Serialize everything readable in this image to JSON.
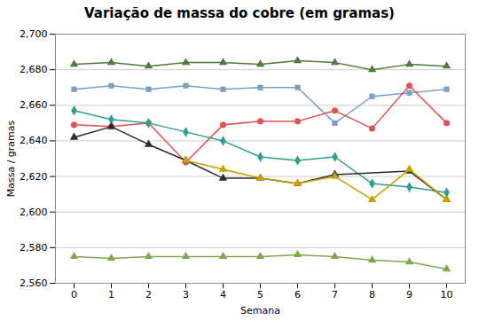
{
  "chart_data": {
    "type": "line",
    "title": "Variação de massa do cobre (em gramas)",
    "xlabel": "Semana",
    "ylabel": "Massa / gramas",
    "x": [
      0,
      1,
      2,
      3,
      4,
      5,
      6,
      7,
      8,
      9,
      10
    ],
    "series": [
      {
        "color": "#4E7A3C",
        "marker": "triangle",
        "values": [
          2683,
          2684,
          2682,
          2684,
          2684,
          2683,
          2685,
          2684,
          2680,
          2683,
          2682
        ]
      },
      {
        "color": "#7B9EC5",
        "marker": "square",
        "values": [
          2669,
          2671,
          2669,
          2671,
          2669,
          2670,
          2670,
          2650,
          2665,
          2667,
          2669
        ]
      },
      {
        "color": "#E05050",
        "marker": "circle",
        "values": [
          2649,
          2648,
          2650,
          2628,
          2649,
          2651,
          2651,
          2657,
          2647,
          2671,
          2650
        ]
      },
      {
        "color": "#2E9E8F",
        "marker": "diamond",
        "values": [
          2657,
          2652,
          2650,
          2645,
          2640,
          2631,
          2629,
          2631,
          2616,
          2614,
          2611
        ]
      },
      {
        "color": "#2A2A2A",
        "marker": "triangle",
        "values": [
          2642,
          2648,
          2638,
          2629,
          2619,
          2619,
          2616,
          2621,
          null,
          2623,
          2607
        ]
      },
      {
        "color": "#C8A000",
        "marker": "triangle",
        "values": [
          null,
          null,
          null,
          2629,
          2624,
          2619,
          2616,
          2620,
          2607,
          2624,
          2607
        ]
      },
      {
        "color": "#7EA84E",
        "marker": "triangle",
        "values": [
          2575,
          2574,
          2575,
          2575,
          2575,
          2575,
          2576,
          2575,
          2573,
          2572,
          2568
        ]
      }
    ],
    "xlim": [
      -0.5,
      10.5
    ],
    "xticks": [
      0,
      1,
      2,
      3,
      4,
      5,
      6,
      7,
      8,
      9,
      10
    ],
    "ylim": [
      2560,
      2700
    ],
    "yticks": [
      {
        "value": 2560,
        "label": "2,560"
      },
      {
        "value": 2580,
        "label": "2,580"
      },
      {
        "value": 2600,
        "label": "2,600"
      },
      {
        "value": 2620,
        "label": "2,620"
      },
      {
        "value": 2640,
        "label": "2,640"
      },
      {
        "value": 2660,
        "label": "2,660"
      },
      {
        "value": 2680,
        "label": "2,680"
      },
      {
        "value": 2700,
        "label": "2,700"
      }
    ],
    "grid": "y"
  }
}
